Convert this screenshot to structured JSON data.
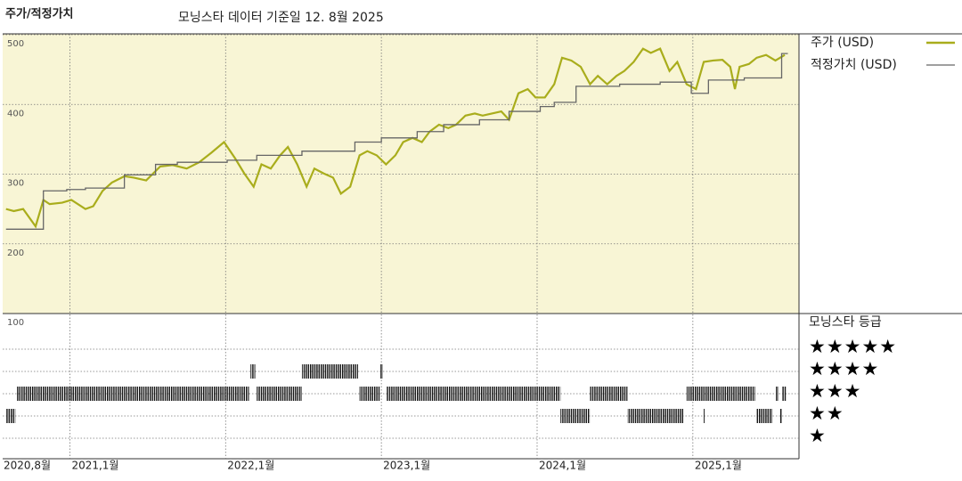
{
  "chart_data": {
    "type": "line",
    "title": "주가/적정가치",
    "subtitle": "모닝스타 데이터 기준일 12. 8월 2025",
    "xlim": [
      2020.58,
      2025.67
    ],
    "xticks": [
      {
        "value": 2020.58,
        "label": "2020,8월"
      },
      {
        "value": 2021.0,
        "label": "2021,1월"
      },
      {
        "value": 2022.0,
        "label": "2022,1월"
      },
      {
        "value": 2023.0,
        "label": "2023,1월"
      },
      {
        "value": 2024.0,
        "label": "2024,1월"
      },
      {
        "value": 2025.0,
        "label": "2025,1월"
      }
    ],
    "ylim": [
      100,
      500
    ],
    "yticks": [
      200,
      300,
      400,
      500
    ],
    "grid": true,
    "series": [
      {
        "name": "주가 (USD)",
        "color": "#a9ad1c",
        "step": false,
        "x": [
          2020.59,
          2020.64,
          2020.7,
          2020.78,
          2020.83,
          2020.87,
          2020.95,
          2021.01,
          2021.1,
          2021.15,
          2021.21,
          2021.27,
          2021.35,
          2021.41,
          2021.49,
          2021.58,
          2021.66,
          2021.75,
          2021.83,
          2021.91,
          2021.99,
          2022.06,
          2022.12,
          2022.18,
          2022.23,
          2022.29,
          2022.35,
          2022.4,
          2022.46,
          2022.52,
          2022.57,
          2022.63,
          2022.69,
          2022.74,
          2022.8,
          2022.86,
          2022.91,
          2022.97,
          2023.03,
          2023.09,
          2023.14,
          2023.2,
          2023.26,
          2023.31,
          2023.37,
          2023.43,
          2023.48,
          2023.54,
          2023.6,
          2023.65,
          2023.71,
          2023.77,
          2023.82,
          2023.88,
          2023.94,
          2023.99,
          2024.05,
          2024.11,
          2024.16,
          2024.22,
          2024.28,
          2024.34,
          2024.39,
          2024.45,
          2024.51,
          2024.56,
          2024.62,
          2024.68,
          2024.73,
          2024.79,
          2024.85,
          2024.9,
          2024.96,
          2025.02,
          2025.07,
          2025.13,
          2025.19,
          2025.24,
          2025.27,
          2025.3,
          2025.36,
          2025.41,
          2025.47,
          2025.53,
          2025.59
        ],
        "values": [
          250,
          247,
          250,
          225,
          263,
          257,
          259,
          263,
          250,
          254,
          276,
          288,
          297,
          295,
          291,
          311,
          313,
          308,
          317,
          331,
          346,
          323,
          301,
          282,
          314,
          308,
          327,
          339,
          314,
          282,
          308,
          301,
          295,
          272,
          282,
          327,
          333,
          327,
          314,
          327,
          346,
          352,
          346,
          361,
          371,
          366,
          371,
          384,
          387,
          384,
          387,
          390,
          378,
          416,
          422,
          410,
          410,
          429,
          467,
          463,
          454,
          429,
          441,
          429,
          441,
          448,
          461,
          480,
          474,
          480,
          448,
          461,
          429,
          422,
          461,
          463,
          464,
          454,
          422,
          454,
          458,
          467,
          471,
          463,
          471
        ]
      },
      {
        "name": "적정가치 (USD)",
        "color": "#666666",
        "step": true,
        "x": [
          2020.59,
          2020.83,
          2020.98,
          2021.1,
          2021.35,
          2021.55,
          2021.69,
          2022.01,
          2022.2,
          2022.49,
          2022.83,
          2023.0,
          2023.23,
          2023.4,
          2023.63,
          2023.82,
          2024.02,
          2024.11,
          2024.25,
          2024.53,
          2024.79,
          2024.99,
          2025.1,
          2025.33,
          2025.57,
          2025.61
        ],
        "values": [
          221,
          276,
          278,
          280,
          299,
          314,
          317,
          320,
          327,
          333,
          346,
          352,
          361,
          371,
          378,
          390,
          397,
          403,
          426,
          429,
          432,
          416,
          435,
          438,
          473,
          473
        ]
      }
    ],
    "rating": {
      "title": "모닝스타 등급",
      "axis_label": "100",
      "levels": [
        5,
        4,
        3,
        2,
        1
      ],
      "star_labels": [
        "★★★★★",
        "★★★★",
        "★★★",
        "★★",
        "★"
      ],
      "start": [
        2020.59,
        2020.66,
        2022.16,
        2022.2,
        2022.49,
        2022.86,
        2022.99,
        2023.03,
        2024.15,
        2024.34,
        2024.58,
        2024.96,
        2025.07,
        2025.41,
        2025.53,
        2025.56,
        2025.57
      ],
      "end": [
        2020.65,
        2022.15,
        2022.19,
        2022.49,
        2022.85,
        2022.99,
        2023.01,
        2024.15,
        2024.34,
        2024.58,
        2024.94,
        2025.4,
        2025.08,
        2025.51,
        2025.55,
        2025.57,
        2025.6
      ],
      "values": [
        2,
        3,
        4,
        3,
        4,
        3,
        4,
        3,
        2,
        3,
        2,
        3,
        2,
        2,
        3,
        2,
        3
      ]
    }
  }
}
